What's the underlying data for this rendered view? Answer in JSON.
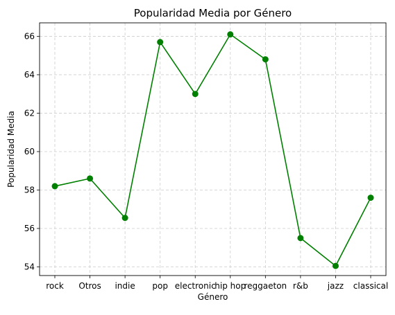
{
  "chart_data": {
    "type": "line",
    "title": "Popularidad Media por Género",
    "xlabel": "Género",
    "ylabel": "Popularidad Media",
    "categories": [
      "rock",
      "Otros",
      "indie",
      "pop",
      "electronic",
      "hip hop",
      "reggaeton",
      "r&b",
      "jazz",
      "classical"
    ],
    "values": [
      58.2,
      58.6,
      56.55,
      65.7,
      63.0,
      66.1,
      64.8,
      55.5,
      54.05,
      57.6
    ],
    "ylim": [
      53.55,
      66.7
    ],
    "yticks": [
      54,
      56,
      58,
      60,
      62,
      64,
      66
    ],
    "grid": true,
    "line_color": "#008000",
    "marker": "circle"
  }
}
